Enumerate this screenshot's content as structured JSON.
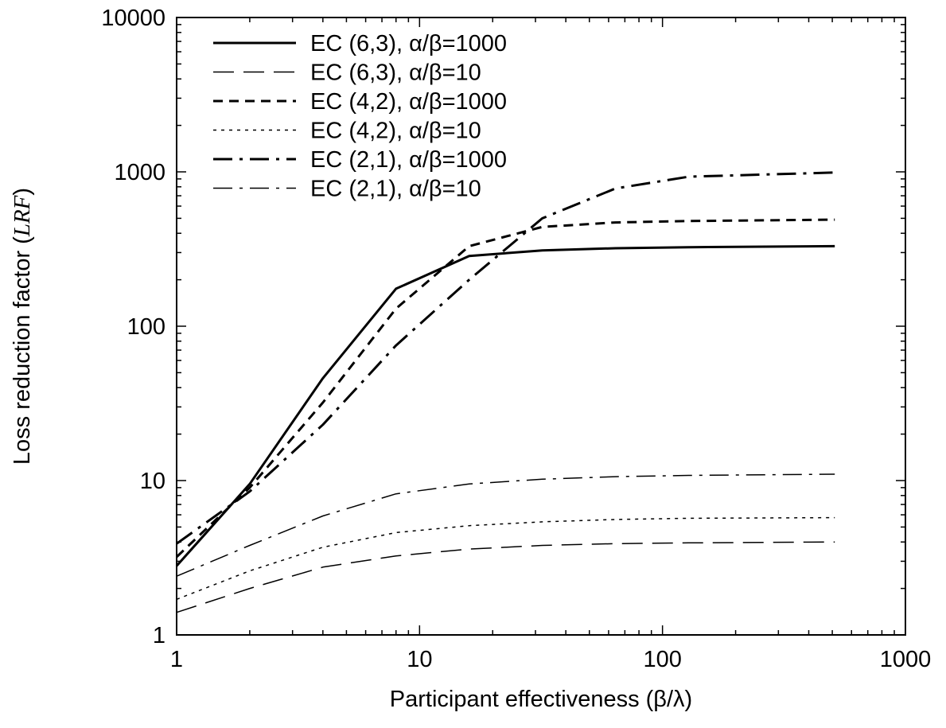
{
  "chart_data": {
    "type": "line",
    "title": "",
    "xlabel": "Participant effectiveness (β/λ)",
    "ylabel_main": "Loss reduction factor (",
    "ylabel_italic": "LRF",
    "ylabel_close": ")",
    "x_scale": "log",
    "y_scale": "log",
    "xlim": [
      1,
      1000
    ],
    "ylim": [
      1,
      10000
    ],
    "xticks": [
      1,
      10,
      100,
      1000
    ],
    "yticks": [
      1,
      10,
      100,
      1000,
      10000
    ],
    "xtick_labels": [
      "1",
      "10",
      "100",
      "1000"
    ],
    "ytick_labels": [
      "1",
      "10",
      "100",
      "1000",
      "10000"
    ],
    "grid": false,
    "legend_position": "top-left",
    "series": [
      {
        "name": "EC (6,3), α/β=1000",
        "style": "solid-thick",
        "x": [
          1,
          2,
          4,
          8,
          16,
          32,
          64,
          128,
          512
        ],
        "y": [
          2.8,
          9.5,
          46,
          175,
          285,
          310,
          320,
          325,
          330
        ]
      },
      {
        "name": "EC (6,3), α/β=10",
        "style": "long-dash-thin",
        "x": [
          1,
          2,
          4,
          8,
          16,
          32,
          64,
          128,
          512
        ],
        "y": [
          1.4,
          2.0,
          2.75,
          3.25,
          3.6,
          3.8,
          3.9,
          3.95,
          4.0
        ]
      },
      {
        "name": "EC (4,2), α/β=1000",
        "style": "short-dash-thick",
        "x": [
          1,
          2,
          4,
          8,
          16,
          32,
          64,
          128,
          512
        ],
        "y": [
          3.2,
          9.0,
          32,
          130,
          330,
          440,
          470,
          480,
          490
        ]
      },
      {
        "name": "EC (4,2), α/β=10",
        "style": "dotted-thin",
        "x": [
          1,
          2,
          4,
          8,
          16,
          32,
          64,
          128,
          512
        ],
        "y": [
          1.7,
          2.6,
          3.7,
          4.6,
          5.1,
          5.4,
          5.6,
          5.7,
          5.75
        ]
      },
      {
        "name": "EC (2,1), α/β=1000",
        "style": "dash-dot-thick",
        "x": [
          1,
          2,
          4,
          8,
          16,
          32,
          64,
          128,
          512
        ],
        "y": [
          3.9,
          8.5,
          23,
          75,
          200,
          500,
          780,
          930,
          990
        ]
      },
      {
        "name": "EC (2,1), α/β=10",
        "style": "dash-dot-thin",
        "x": [
          1,
          2,
          4,
          8,
          16,
          32,
          64,
          128,
          512
        ],
        "y": [
          2.4,
          3.8,
          5.9,
          8.2,
          9.5,
          10.2,
          10.6,
          10.8,
          11.0
        ]
      }
    ]
  }
}
